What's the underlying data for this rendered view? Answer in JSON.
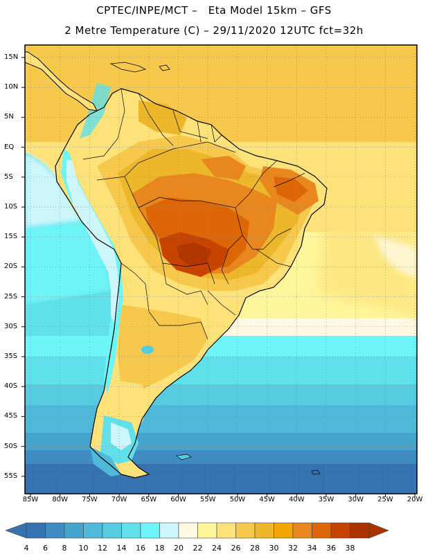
{
  "title_line1": "CPTEC/INPE/MCT –   Eta Model 15km – GFS",
  "title_line2": "2 Metre Temperature (C) – 29/11/2020 12UTC fct=32h",
  "lat_labels": [
    "15N",
    "10N",
    "5N",
    "EQ",
    "5S",
    "10S",
    "15S",
    "20S",
    "25S",
    "30S",
    "35S",
    "40S",
    "45S",
    "50S",
    "55S"
  ],
  "lon_labels": [
    "85W",
    "80W",
    "75W",
    "70W",
    "65W",
    "60W",
    "55W",
    "50W",
    "45W",
    "40W",
    "35W",
    "30W",
    "25W",
    "20W"
  ],
  "colorbar": {
    "labels": [
      "4",
      "6",
      "8",
      "10",
      "12",
      "14",
      "16",
      "18",
      "20",
      "22",
      "24",
      "26",
      "28",
      "30",
      "32",
      "34",
      "36",
      "38"
    ],
    "colors": [
      "#3672b0",
      "#3f8cc2",
      "#45a3cc",
      "#50b8d9",
      "#57cbe0",
      "#5fe0ea",
      "#6ef5f8",
      "#ccf6fc",
      "#fff9e4",
      "#fff59a",
      "#fde27a",
      "#f6c84b",
      "#ecb72a",
      "#f2a600",
      "#e8871e",
      "#dd6606",
      "#c64400",
      "#aa3300"
    ]
  }
}
